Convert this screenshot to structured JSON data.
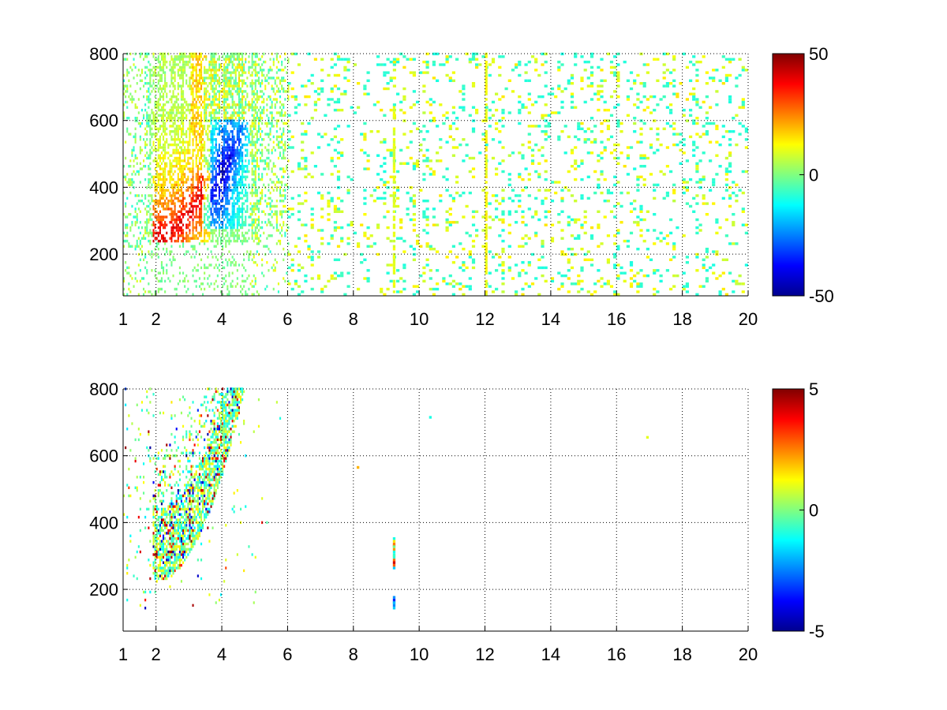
{
  "chart_data": [
    {
      "type": "heatmap",
      "title": "",
      "xlabel": "",
      "ylabel": "",
      "xlim": [
        1,
        20
      ],
      "ylim": [
        75,
        800
      ],
      "x_ticks": [
        1,
        2,
        4,
        6,
        8,
        10,
        12,
        14,
        16,
        18,
        20
      ],
      "y_ticks": [
        200,
        400,
        600,
        800
      ],
      "grid": true,
      "colormap": "jet",
      "colorbar": {
        "min": -50,
        "max": 50,
        "ticks": [
          50,
          0,
          -50
        ]
      },
      "dense_region": {
        "x_range": [
          1,
          6
        ],
        "y_range": [
          230,
          800
        ],
        "positive_band": {
          "description_values": "x 2.0-3.6, y 240-500",
          "peak": 50
        },
        "negative_band": {
          "description_values": "x 3.5-4.5, y 280-560",
          "peak": -50
        }
      },
      "sparse_region": {
        "x_range": [
          6,
          20
        ],
        "value_range": [
          -10,
          15
        ]
      },
      "stripes": [
        {
          "x": 9.2,
          "y_range": [
            75,
            640
          ],
          "value": 10
        },
        {
          "x": 12.0,
          "y_range": [
            75,
            800
          ],
          "value": 12
        }
      ]
    },
    {
      "type": "heatmap",
      "title": "",
      "xlabel": "",
      "ylabel": "",
      "xlim": [
        1,
        20
      ],
      "ylim": [
        75,
        800
      ],
      "x_ticks": [
        1,
        2,
        4,
        6,
        8,
        10,
        12,
        14,
        16,
        18,
        20
      ],
      "y_ticks": [
        200,
        400,
        600,
        800
      ],
      "grid": true,
      "colormap": "jet",
      "colorbar": {
        "min": -5,
        "max": 5,
        "ticks": [
          5,
          0,
          -5
        ]
      },
      "dense_region": {
        "x_range": [
          1,
          5.8
        ],
        "y_range": [
          200,
          800
        ]
      },
      "isolated_points": [
        {
          "x": 9.2,
          "y": 330,
          "value": 3
        },
        {
          "x": 9.2,
          "y": 300,
          "value": 1
        },
        {
          "x": 9.2,
          "y": 160,
          "value": -2
        },
        {
          "x": 10.3,
          "y": 715,
          "value": -1
        },
        {
          "x": 16.9,
          "y": 655,
          "value": 1
        },
        {
          "x": 8.1,
          "y": 565,
          "value": 2
        }
      ]
    }
  ]
}
